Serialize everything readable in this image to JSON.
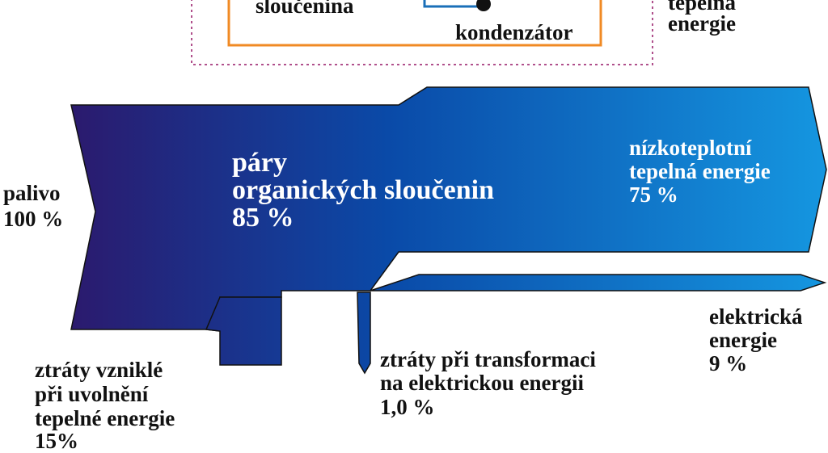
{
  "colors": {
    "flow_start": "#2b1a6e",
    "flow_mid": "#0a4aa8",
    "flow_end": "#1596e0",
    "box_border": "#f08a24",
    "dotted_border": "#b0508c",
    "pipe": "#1a6fb8"
  },
  "top": {
    "compound_label": "sloučenina",
    "condenser_label": "kondenzátor",
    "right_label_line1": "tepelná",
    "right_label_line2": "energie"
  },
  "input": {
    "label": "palivo",
    "percent": "100 %"
  },
  "vapors": {
    "line1": "páry",
    "line2": "organických sloučenin",
    "percent": "85 %"
  },
  "lowtemp": {
    "line1": "nízkoteplotní",
    "line2": "tepelná energie",
    "percent": "75 %"
  },
  "electric": {
    "line1": "elektrická",
    "line2": "energie",
    "percent": "9 %"
  },
  "loss_heat": {
    "line1": "ztráty vzniklé",
    "line2": "při uvolnění",
    "line3": "tepelné energie",
    "percent": "15%"
  },
  "loss_transform": {
    "line1": "ztráty při transformaci",
    "line2": "na elektrickou energii",
    "percent": "1,0 %"
  }
}
